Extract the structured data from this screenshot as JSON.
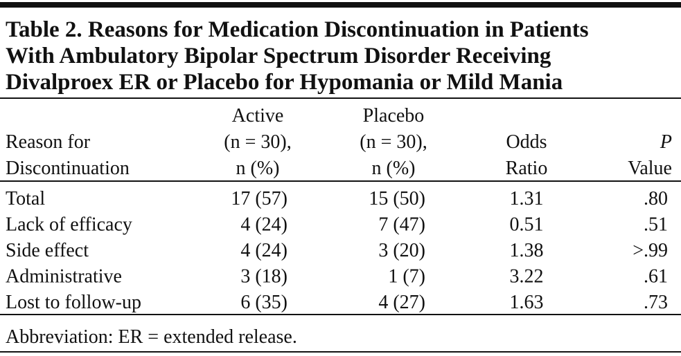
{
  "title": [
    "Table 2. Reasons for Medication Discontinuation in Patients",
    "With Ambulatory Bipolar Spectrum Disorder Receiving",
    "Divalproex ER or Placebo for Hypomania or Mild Mania"
  ],
  "table": {
    "header": [
      [
        "Reason for",
        "Discontinuation"
      ],
      [
        "Active",
        "(n = 30),",
        "n (%)"
      ],
      [
        "Placebo",
        "(n = 30),",
        "n (%)"
      ],
      [
        "Odds",
        "Ratio"
      ],
      [
        "P",
        "Value"
      ]
    ],
    "rows": [
      [
        "Total",
        "17 (57)",
        "15 (50)",
        "1.31",
        ".80"
      ],
      [
        "Lack of efficacy",
        "4 (24)",
        "7 (47)",
        "0.51",
        ".51"
      ],
      [
        "Side effect",
        "4 (24)",
        "3 (20)",
        "1.38",
        ">.99"
      ],
      [
        "Administrative",
        "3 (18)",
        "1 (7)",
        "3.22",
        ".61"
      ],
      [
        "Lost to follow-up",
        "6 (35)",
        "4 (27)",
        "1.63",
        ".73"
      ]
    ]
  },
  "footnote": "Abbreviation: ER = extended release."
}
